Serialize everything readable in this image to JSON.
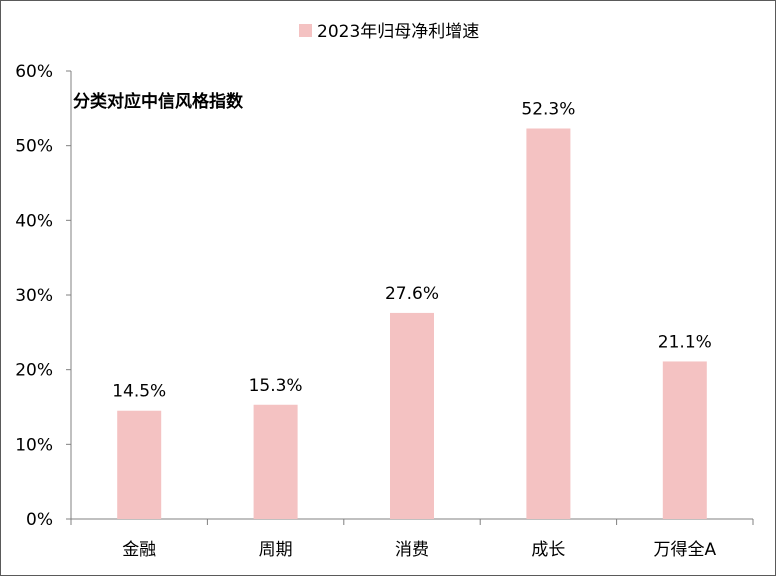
{
  "chart_data": {
    "type": "bar",
    "title": "",
    "subtitle": "分类对应中信风格指数",
    "legend": {
      "position": "top-center",
      "entries": [
        {
          "name": "2023年归母净利增速",
          "color": "#f4c2c2"
        }
      ]
    },
    "categories": [
      "金融",
      "周期",
      "消费",
      "成长",
      "万得全A"
    ],
    "series": [
      {
        "name": "2023年归母净利增速",
        "values": [
          14.5,
          15.3,
          27.6,
          52.3,
          21.1
        ],
        "color": "#f4c2c2"
      }
    ],
    "data_labels": [
      "14.5%",
      "15.3%",
      "27.6%",
      "52.3%",
      "21.1%"
    ],
    "ylim": [
      0,
      60
    ],
    "yticks": [
      "0%",
      "10%",
      "20%",
      "30%",
      "40%",
      "50%",
      "60%"
    ],
    "xlabel": "",
    "ylabel": "",
    "grid": false
  }
}
